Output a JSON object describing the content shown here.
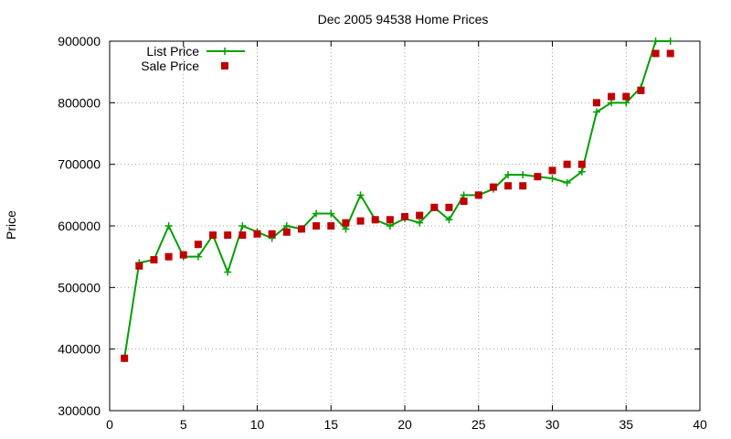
{
  "chart_data": {
    "type": "line",
    "title": "Dec 2005 94538 Home Prices",
    "xlabel": "",
    "ylabel": "Price",
    "xlim": [
      0,
      40
    ],
    "ylim": [
      300000,
      900000
    ],
    "xticks": [
      0,
      5,
      10,
      15,
      20,
      25,
      30,
      35,
      40
    ],
    "yticks": [
      300000,
      400000,
      500000,
      600000,
      700000,
      800000,
      900000
    ],
    "grid": true,
    "legend_position": "top-left",
    "series": [
      {
        "name": "List Price",
        "style": "line-plus",
        "color": "#00a000",
        "x": [
          1,
          2,
          3,
          4,
          5,
          6,
          7,
          8,
          9,
          10,
          11,
          12,
          13,
          14,
          15,
          16,
          17,
          18,
          19,
          20,
          21,
          22,
          23,
          24,
          25,
          26,
          27,
          28,
          29,
          30,
          31,
          32,
          33,
          34,
          35,
          36,
          37,
          38
        ],
        "values": [
          385000,
          540000,
          545000,
          600000,
          550000,
          550000,
          585000,
          525000,
          600000,
          590000,
          580000,
          600000,
          595000,
          620000,
          620000,
          595000,
          650000,
          610000,
          600000,
          612000,
          605000,
          630000,
          610000,
          650000,
          650000,
          660000,
          683000,
          683000,
          680000,
          677000,
          670000,
          688000,
          785000,
          800000,
          800000,
          825000,
          900000,
          900000
        ]
      },
      {
        "name": "Sale Price",
        "style": "squares",
        "color": "#c00000",
        "x": [
          1,
          2,
          3,
          4,
          5,
          6,
          7,
          8,
          9,
          10,
          11,
          12,
          13,
          14,
          15,
          16,
          17,
          18,
          19,
          20,
          21,
          22,
          23,
          24,
          25,
          26,
          27,
          28,
          29,
          30,
          31,
          32,
          33,
          34,
          35,
          36,
          37,
          38
        ],
        "values": [
          385000,
          535000,
          545000,
          550000,
          553000,
          570000,
          585000,
          585000,
          585000,
          587000,
          587000,
          590000,
          595000,
          600000,
          600000,
          605000,
          608000,
          610000,
          610000,
          615000,
          617000,
          630000,
          630000,
          640000,
          650000,
          663000,
          665000,
          665000,
          680000,
          690000,
          700000,
          700000,
          800000,
          810000,
          810000,
          820000,
          880000,
          880000
        ]
      }
    ]
  }
}
